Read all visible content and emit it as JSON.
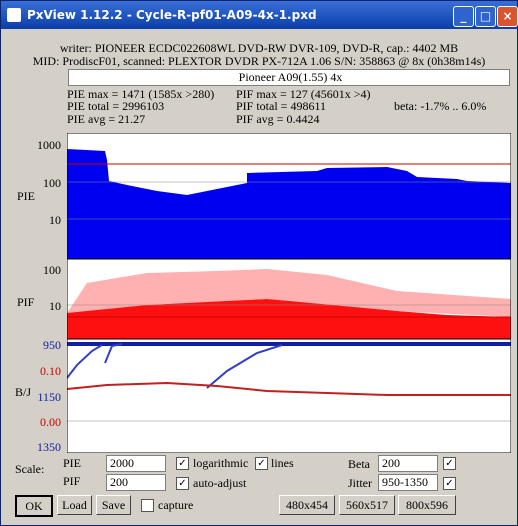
{
  "window": {
    "title": "PxView 1.12.2  -  Cycle-R-pf01-A09-4x-1.pxd"
  },
  "info": {
    "writer": "writer: PIONEER ECDC022608WL DVD-RW DVR-109, DVD-R, cap.: 4402 MB",
    "mid": "MID: ProdiscF01, scanned: PLEXTOR DVDR PX-712A 1.06 S/N: 358863 @ 8x (0h38m14s)",
    "label": "Pioneer A09(1.55) 4x"
  },
  "stats": {
    "pie_max": "PIE max = 1471 (1585x >280)",
    "pif_max": "PIF max = 127 (45601x >4)",
    "pie_total": "PIE total = 2996103",
    "pif_total": "PIF total = 498611",
    "beta": "beta: -1.7% .. 6.0%",
    "pie_avg": "PIE avg = 21.27",
    "pif_avg": "PIF avg = 0.4424"
  },
  "plots": {
    "pie": {
      "label": "PIE",
      "ticks": [
        "1000",
        "100",
        "10"
      ]
    },
    "pif": {
      "label": "PIF",
      "ticks": [
        "100",
        "10"
      ]
    },
    "bj": {
      "label": "B/J",
      "ticks": [
        "950",
        "0.10",
        "1150",
        "0.00",
        "1350"
      ]
    }
  },
  "controls": {
    "scale": "Scale:",
    "pie": "PIE",
    "pie_value": "2000",
    "logarithmic": "logarithmic",
    "lines": "lines",
    "beta": "Beta",
    "beta_value": "200",
    "pif": "PIF",
    "pif_value": "200",
    "auto_adjust": "auto-adjust",
    "jitter": "Jitter",
    "jitter_value": "950-1350",
    "ok": "OK",
    "load": "Load",
    "save": "Save",
    "capture": "capture",
    "size1": "480x454",
    "size2": "560x517",
    "size3": "800x596"
  }
}
